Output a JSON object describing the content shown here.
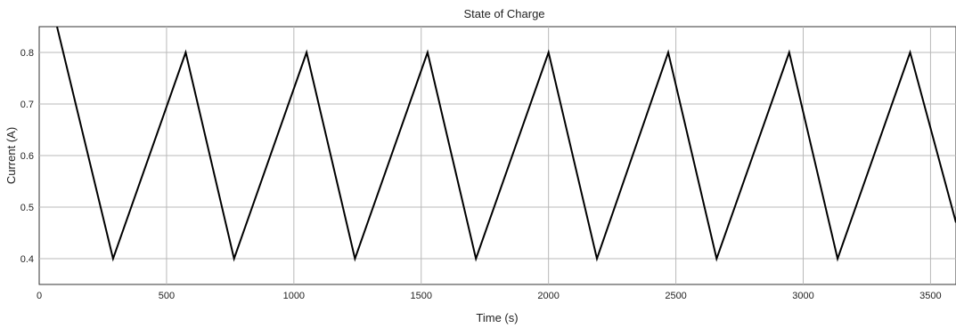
{
  "chart_data": {
    "type": "line",
    "title": "State of Charge",
    "xlabel": "Time (s)",
    "ylabel": "Current (A)",
    "xlim": [
      0,
      3600
    ],
    "ylim": [
      0.35,
      0.85
    ],
    "xticks": [
      0,
      500,
      1000,
      1500,
      2000,
      2500,
      3000,
      3500
    ],
    "yticks": [
      0.4,
      0.5,
      0.6,
      0.7,
      0.8
    ],
    "grid": true,
    "series": [
      {
        "color": "#000000",
        "x": [
          70,
          290,
          575,
          765,
          1050,
          1240,
          1525,
          1715,
          2000,
          2190,
          2470,
          2660,
          2945,
          3135,
          3420,
          3600
        ],
        "y": [
          0.85,
          0.4,
          0.8,
          0.4,
          0.8,
          0.4,
          0.8,
          0.4,
          0.8,
          0.4,
          0.8,
          0.4,
          0.8,
          0.4,
          0.8,
          0.47
        ]
      }
    ]
  }
}
